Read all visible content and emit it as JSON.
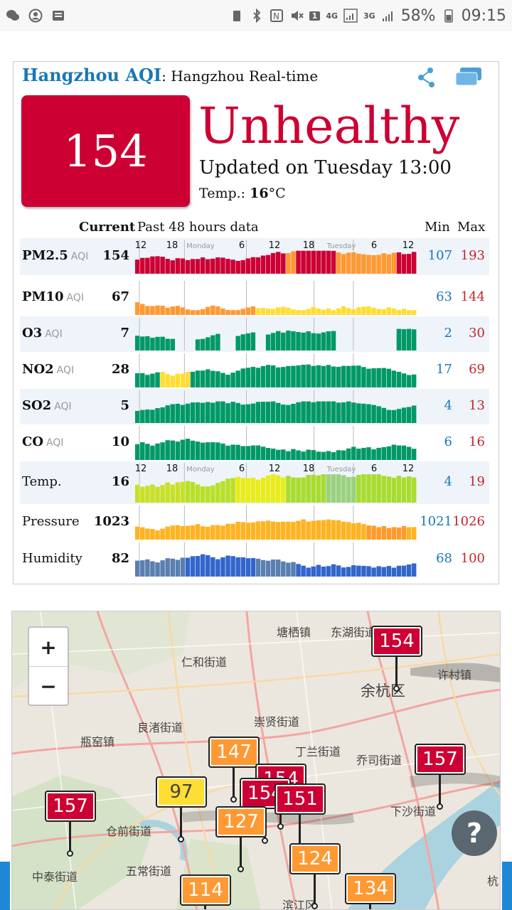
{
  "status_bar": {
    "battery_percent": "58%",
    "time": "09:15",
    "net1": "4G",
    "net2": "3G",
    "sim": "1"
  },
  "card": {
    "city_title": "Hangzhou AQI",
    "title_separator": ":",
    "subtitle": "Hangzhou Real-time A",
    "aqi": "154",
    "level": "Unhealthy",
    "updated": "Updated on Tuesday 13:00",
    "temp_label": "Temp.:",
    "temp_value": "16",
    "temp_unit": "°C",
    "level_color": "#cc0033"
  },
  "table": {
    "header_current": "Current",
    "header_past": "Past 48 hours data",
    "header_min": "Min",
    "header_max": "Max",
    "top_axis_labels": [
      "12",
      "18",
      "Monday",
      "6",
      "12",
      "18",
      "Tuesday",
      "6",
      "12"
    ],
    "rows": [
      {
        "name": "PM2.5",
        "unit": "AQI",
        "bold": true,
        "current": "154",
        "min": "107",
        "max": "193"
      },
      {
        "name": "PM10",
        "unit": "AQI",
        "bold": true,
        "current": "67",
        "min": "63",
        "max": "144"
      },
      {
        "name": "O3",
        "unit": "AQI",
        "bold": true,
        "current": "7",
        "min": "2",
        "max": "30"
      },
      {
        "name": "NO2",
        "unit": "AQI",
        "bold": true,
        "current": "28",
        "min": "17",
        "max": "69"
      },
      {
        "name": "SO2",
        "unit": "AQI",
        "bold": true,
        "current": "5",
        "min": "4",
        "max": "13"
      },
      {
        "name": "CO",
        "unit": "AQI",
        "bold": true,
        "current": "10",
        "min": "6",
        "max": "16"
      },
      {
        "name": "Temp.",
        "unit": "",
        "bold": false,
        "current": "16",
        "min": "4",
        "max": "19"
      },
      {
        "name": "Pressure",
        "unit": "",
        "bold": false,
        "current": "1023",
        "min": "1021",
        "max": "1026"
      },
      {
        "name": "Humidity",
        "unit": "",
        "bold": false,
        "current": "82",
        "min": "68",
        "max": "100"
      }
    ]
  },
  "map": {
    "zoom_in": "+",
    "zoom_out": "−",
    "help": "?",
    "places": [
      "塘栖镇",
      "东湖街道",
      "仁和街道",
      "余杭区",
      "许村镇",
      "崇贤街道",
      "良渚街道",
      "瓶窑镇",
      "丁兰街道",
      "乔司街道",
      "下沙街道",
      "仓前街道",
      "五常街道",
      "中泰街道",
      "滨江区",
      "杭"
    ],
    "markers": [
      "154",
      "147",
      "154",
      "157",
      "97",
      "154",
      "151",
      "157",
      "127",
      "124",
      "114",
      "134"
    ]
  }
}
